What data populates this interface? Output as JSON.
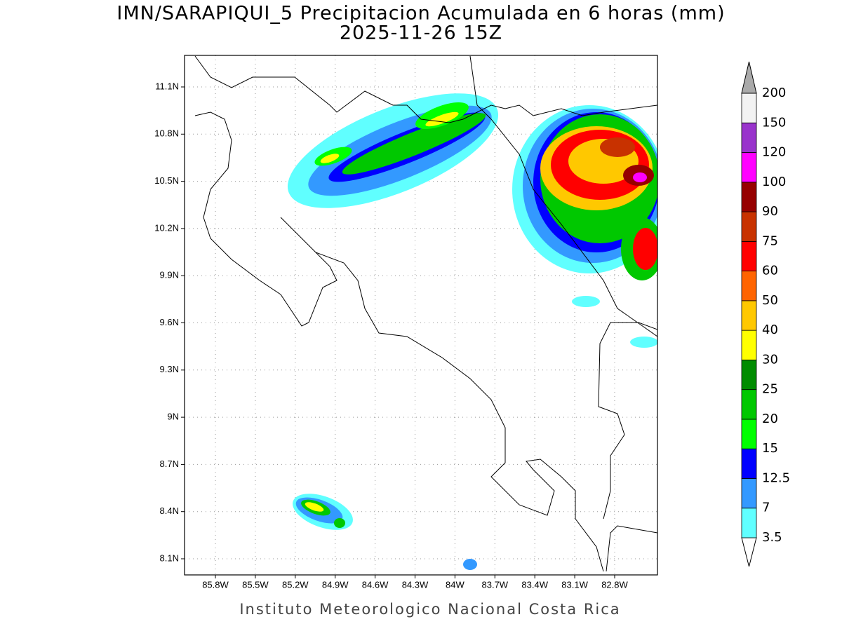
{
  "title": "IMN/SARAPIQUI_5 Precipitacion Acumulada en 6 horas (mm)",
  "subtitle": "2025-11-26 15Z",
  "map": {
    "lon_labels": [
      "85.8W",
      "85.5W",
      "85.2W",
      "84.9W",
      "84.6W",
      "84.3W",
      "84W",
      "83.7W",
      "83.4W",
      "83.1W",
      "82.8W"
    ],
    "lat_labels": [
      "11.1N",
      "10.8N",
      "10.5N",
      "10.2N",
      "9.9N",
      "9.6N",
      "9.3N",
      "9N",
      "8.7N",
      "8.4N",
      "8.1N"
    ]
  },
  "colorbar": {
    "levels": [
      "3.5",
      "7",
      "12.5",
      "15",
      "20",
      "25",
      "30",
      "40",
      "50",
      "60",
      "75",
      "90",
      "100",
      "120",
      "150",
      "200"
    ],
    "colors": [
      "#ffffff",
      "#60ffff",
      "#3399ff",
      "#0000ff",
      "#00ff00",
      "#00c800",
      "#008c00",
      "#ffff00",
      "#ffc800",
      "#ff6400",
      "#ff0000",
      "#c83200",
      "#960000",
      "#ff00ff",
      "#9933cc",
      "#f2f2f2",
      "#aaaaaa"
    ]
  },
  "footer": "Instituto Meteorologico Nacional Costa Rica"
}
